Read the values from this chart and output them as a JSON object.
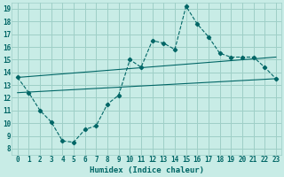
{
  "title": "",
  "xlabel": "Humidex (Indice chaleur)",
  "ylabel": "",
  "bg_color": "#c8ece6",
  "grid_color": "#9ecfc7",
  "line_color": "#006666",
  "xlim": [
    -0.5,
    23.5
  ],
  "ylim": [
    7.5,
    19.5
  ],
  "xticks": [
    0,
    1,
    2,
    3,
    4,
    5,
    6,
    7,
    8,
    9,
    10,
    11,
    12,
    13,
    14,
    15,
    16,
    17,
    18,
    19,
    20,
    21,
    22,
    23
  ],
  "yticks": [
    8,
    9,
    10,
    11,
    12,
    13,
    14,
    15,
    16,
    17,
    18,
    19
  ],
  "curve1_x": [
    0,
    1,
    2,
    3,
    4,
    5,
    6,
    7,
    8,
    9,
    10,
    11,
    12,
    13,
    14,
    15,
    16,
    17,
    18,
    19,
    20,
    21,
    22,
    23
  ],
  "curve1_y": [
    13.6,
    12.4,
    11.0,
    10.1,
    8.6,
    8.5,
    9.5,
    9.8,
    11.5,
    12.2,
    15.0,
    14.4,
    16.5,
    16.3,
    15.8,
    19.2,
    17.8,
    16.8,
    15.5,
    15.2,
    15.2,
    15.2,
    14.4,
    13.5
  ],
  "line2_x": [
    0,
    23
  ],
  "line2_y": [
    13.6,
    15.2
  ],
  "line3_x": [
    0,
    23
  ],
  "line3_y": [
    12.4,
    13.5
  ]
}
